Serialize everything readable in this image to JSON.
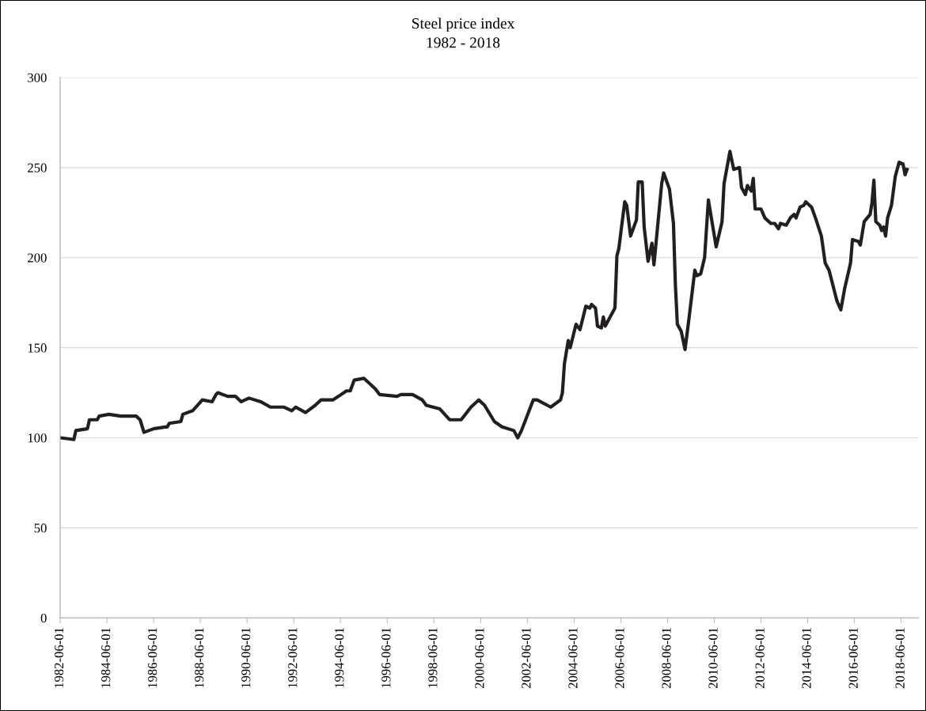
{
  "chart_data": {
    "type": "line",
    "title": "Steel price index",
    "subtitle": "1982 - 2018",
    "x": [
      "1982-06",
      "1983-01",
      "1983-02",
      "1983-08",
      "1983-09",
      "1984-01",
      "1984-02",
      "1984-07",
      "1985-01",
      "1985-09",
      "1985-11",
      "1986-01",
      "1986-06",
      "1986-12",
      "1987-01",
      "1987-02",
      "1987-08",
      "1987-09",
      "1988-02",
      "1988-07",
      "1988-12",
      "1989-02",
      "1989-03",
      "1989-08",
      "1989-12",
      "1990-03",
      "1990-07",
      "1991-01",
      "1991-06",
      "1992-01",
      "1992-05",
      "1992-07",
      "1992-12",
      "1993-05",
      "1993-08",
      "1994-02",
      "1994-05",
      "1994-09",
      "1994-11",
      "1995-01",
      "1995-06",
      "1995-12",
      "1996-02",
      "1996-11",
      "1997-01",
      "1997-07",
      "1997-12",
      "1998-02",
      "1998-09",
      "1999-02",
      "1999-08",
      "2000-01",
      "2000-05",
      "2000-08",
      "2001-01",
      "2001-05",
      "2001-11",
      "2002-01",
      "2002-03",
      "2002-09",
      "2002-11",
      "2003-06",
      "2003-11",
      "2003-12",
      "2004-01",
      "2004-03",
      "2004-04",
      "2004-07",
      "2004-09",
      "2004-12",
      "2005-02",
      "2005-03",
      "2005-05",
      "2005-06",
      "2005-08",
      "2005-09",
      "2005-10",
      "2006-03",
      "2006-04",
      "2006-05",
      "2006-08",
      "2006-09",
      "2006-11",
      "2007-02",
      "2007-03",
      "2007-05",
      "2007-06",
      "2007-08",
      "2007-10",
      "2007-11",
      "2008-03",
      "2008-04",
      "2008-07",
      "2008-09",
      "2008-10",
      "2008-11",
      "2009-01",
      "2009-03",
      "2009-05",
      "2009-08",
      "2009-09",
      "2009-11",
      "2010-01",
      "2010-03",
      "2010-07",
      "2010-10",
      "2010-11",
      "2011-02",
      "2011-04",
      "2011-07",
      "2011-08",
      "2011-10",
      "2011-11",
      "2012-01",
      "2012-02",
      "2012-03",
      "2012-06",
      "2012-08",
      "2012-11",
      "2013-01",
      "2013-03",
      "2013-04",
      "2013-07",
      "2013-09",
      "2013-11",
      "2013-12",
      "2014-02",
      "2014-04",
      "2014-05",
      "2014-08",
      "2014-10",
      "2015-01",
      "2015-03",
      "2015-05",
      "2015-09",
      "2015-11",
      "2016-01",
      "2016-04",
      "2016-05",
      "2016-08",
      "2016-09",
      "2016-11",
      "2017-02",
      "2017-03",
      "2017-04",
      "2017-05",
      "2017-07",
      "2017-08",
      "2017-09",
      "2017-10",
      "2017-11",
      "2018-01",
      "2018-03",
      "2018-05",
      "2018-07",
      "2018-08",
      "2018-09"
    ],
    "series": [
      {
        "color": "#231f20",
        "values": [
          100,
          99,
          104,
          105,
          110,
          110,
          112,
          113,
          112,
          112,
          110,
          103,
          105,
          106,
          106,
          108,
          109,
          113,
          115,
          121,
          120,
          124,
          125,
          123,
          123,
          120,
          122,
          120,
          117,
          117,
          115,
          117,
          114,
          118,
          121,
          121,
          123,
          126,
          126,
          132,
          133,
          127,
          124,
          123,
          124,
          124,
          121,
          118,
          116,
          110,
          110,
          117,
          121,
          118,
          109,
          106,
          104,
          100,
          104,
          121,
          121,
          117,
          121,
          125,
          141,
          154,
          150,
          163,
          160,
          173,
          172,
          174,
          172,
          162,
          161,
          167,
          162,
          172,
          201,
          205,
          231,
          229,
          212,
          221,
          242,
          242,
          217,
          198,
          208,
          196,
          241,
          247,
          238,
          219,
          185,
          163,
          159,
          149,
          166,
          193,
          190,
          191,
          200,
          232,
          206,
          220,
          241,
          259,
          249,
          250,
          239,
          235,
          240,
          237,
          244,
          227,
          227,
          222,
          219,
          219,
          216,
          219,
          218,
          222,
          224,
          222,
          228,
          229,
          231,
          228,
          222,
          212,
          197,
          193,
          176,
          171,
          183,
          197,
          210,
          209,
          207,
          220,
          224,
          230,
          243,
          220,
          218,
          215,
          217,
          212,
          222,
          229,
          245,
          253,
          252,
          246,
          249
        ]
      }
    ],
    "xlim": [
      "1982-06-01",
      "2019-03-01"
    ],
    "xticks": [
      "1982-06-01",
      "1984-06-01",
      "1986-06-01",
      "1988-06-01",
      "1990-06-01",
      "1992-06-01",
      "1994-06-01",
      "1996-06-01",
      "1998-06-01",
      "2000-06-01",
      "2002-06-01",
      "2004-06-01",
      "2006-06-01",
      "2008-06-01",
      "2010-06-01",
      "2012-06-01",
      "2014-06-01",
      "2016-06-01",
      "2018-06-01"
    ],
    "ylim": [
      0,
      300
    ],
    "yticks": [
      0,
      50,
      100,
      150,
      200,
      250,
      300
    ],
    "grid": "y",
    "legend": false,
    "marker": "none",
    "line_style": "solid"
  }
}
